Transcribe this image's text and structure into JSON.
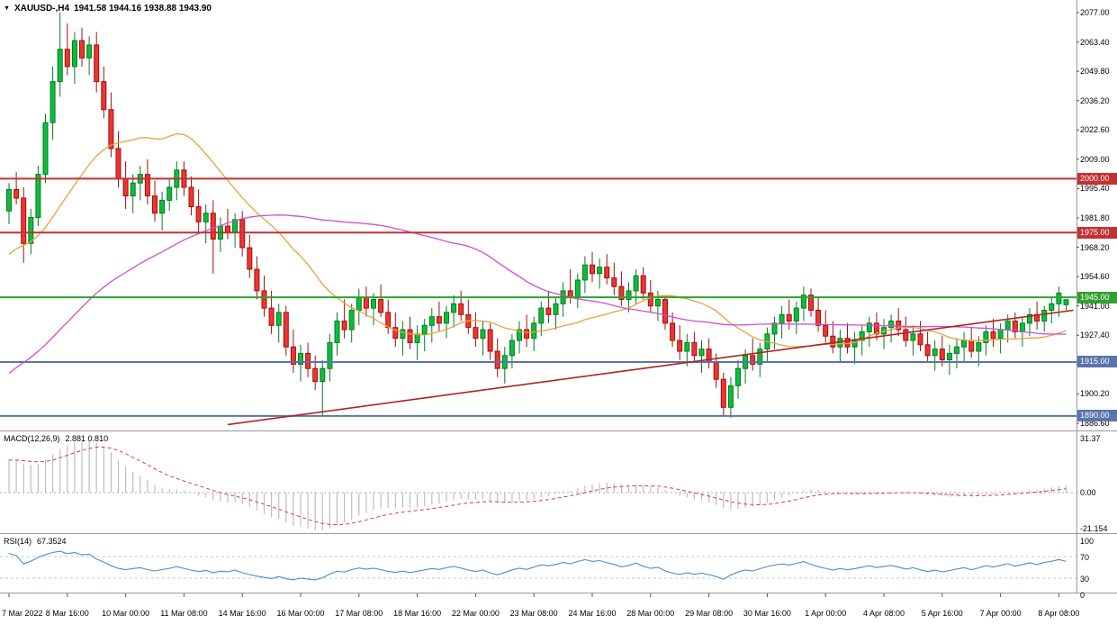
{
  "title_bar": {
    "dropdown_glyph": "▼",
    "symbol_period": "XAUUSD-,H4",
    "ohlc": "1941.58 1944.16 1938.88 1943.90"
  },
  "colors": {
    "up": "#0bbf3a",
    "up_border": "#067a22",
    "down": "#ee3532",
    "down_border": "#9d100e",
    "trendline": "#b22222",
    "macd_hist": "#bdbdbd",
    "macd_signal": "#cc4444",
    "rsi_line": "#4a8fc7",
    "rsi_level": "#b9c8dc",
    "panel_border": "#999999",
    "axis_tick": "#555555",
    "zero_line": "#aaaaaa"
  },
  "chart_data": {
    "type": "candlestick",
    "symbol": "XAUUSD-",
    "timeframe": "H4",
    "current_bar": {
      "open": 1941.58,
      "high": 1944.16,
      "low": 1938.88,
      "close": 1943.9
    },
    "y_ticks_main": [
      "2077.00",
      "2063.40",
      "2049.80",
      "2036.20",
      "2022.60",
      "2009.00",
      "1995.40",
      "1981.80",
      "1968.20",
      "1954.60",
      "1941.00",
      "1927.40",
      "1913.80",
      "1900.20",
      "1886.60"
    ],
    "price_range": {
      "top": 2077.0,
      "bottom": 1886.6
    },
    "x_labels": [
      "7 Mar 2022",
      "8 Mar 16:00",
      "10 Mar 00:00",
      "11 Mar 08:00",
      "14 Mar 16:00",
      "16 Mar 00:00",
      "17 Mar 08:00",
      "18 Mar 16:00",
      "22 Mar 00:00",
      "23 Mar 08:00",
      "24 Mar 16:00",
      "28 Mar 00:00",
      "29 Mar 08:00",
      "30 Mar 16:00",
      "1 Apr 00:00",
      "4 Apr 08:00",
      "5 Apr 16:00",
      "7 Apr 00:00",
      "8 Apr 08:00"
    ],
    "bars_per_label": 8,
    "horizontal_lines": [
      {
        "price": 2000.0,
        "label": "2000.00",
        "color": "#c53030",
        "badge": "#c53030"
      },
      {
        "price": 1975.0,
        "label": "1975.00",
        "color": "#c53030",
        "badge": "#c53030"
      },
      {
        "price": 1945.0,
        "label": "1945.00",
        "color": "#2fa12f",
        "badge": "#2fa12f"
      },
      {
        "price": 1915.0,
        "label": "1915.00",
        "color": "#5a74ac",
        "badge": "#5a74ac"
      },
      {
        "price": 1890.0,
        "label": "1890.00",
        "color": "#5a74ac",
        "badge": "#5a74ac"
      }
    ],
    "trendline": {
      "from_bar": 30,
      "from_price": 1886,
      "to_bar": 146,
      "to_price": 1939,
      "color": "#b22222"
    },
    "moving_averages": [
      {
        "name": "sma-fast",
        "period": 20,
        "color": "#e8a23c"
      },
      {
        "name": "sma-slow",
        "period": 60,
        "color": "#cf4fcf"
      }
    ],
    "candles": [
      [
        1985,
        1998,
        1979,
        1995
      ],
      [
        1995,
        2003,
        1988,
        1991
      ],
      [
        1991,
        1996,
        1961,
        1970
      ],
      [
        1970,
        1986,
        1965,
        1982
      ],
      [
        1982,
        2006,
        1978,
        2002
      ],
      [
        2002,
        2030,
        1998,
        2026
      ],
      [
        2026,
        2052,
        2018,
        2045
      ],
      [
        2045,
        2077,
        2038,
        2060
      ],
      [
        2060,
        2072,
        2048,
        2052
      ],
      [
        2052,
        2068,
        2044,
        2064
      ],
      [
        2064,
        2070,
        2052,
        2056
      ],
      [
        2056,
        2066,
        2048,
        2062
      ],
      [
        2062,
        2068,
        2040,
        2045
      ],
      [
        2045,
        2052,
        2028,
        2032
      ],
      [
        2032,
        2040,
        2010,
        2014
      ],
      [
        2014,
        2022,
        1996,
        2000
      ],
      [
        2000,
        2008,
        1986,
        1992
      ],
      [
        1992,
        2002,
        1984,
        1998
      ],
      [
        1998,
        2006,
        1990,
        2002
      ],
      [
        2002,
        2009,
        1988,
        1992
      ],
      [
        1992,
        1999,
        1980,
        1984
      ],
      [
        1984,
        1994,
        1976,
        1990
      ],
      [
        1990,
        2000,
        1985,
        1996
      ],
      [
        1996,
        2008,
        1990,
        2004
      ],
      [
        2004,
        2008,
        1992,
        1996
      ],
      [
        1996,
        2001,
        1983,
        1987
      ],
      [
        1987,
        1995,
        1975,
        1980
      ],
      [
        1980,
        1988,
        1970,
        1984
      ],
      [
        1984,
        1990,
        1956,
        1972
      ],
      [
        1972,
        1982,
        1966,
        1978
      ],
      [
        1978,
        1986,
        1972,
        1975
      ],
      [
        1975,
        1984,
        1968,
        1981
      ],
      [
        1981,
        1985,
        1964,
        1968
      ],
      [
        1968,
        1974,
        1954,
        1958
      ],
      [
        1958,
        1964,
        1944,
        1948
      ],
      [
        1948,
        1955,
        1936,
        1940
      ],
      [
        1940,
        1948,
        1928,
        1932
      ],
      [
        1932,
        1942,
        1924,
        1938
      ],
      [
        1938,
        1941,
        1918,
        1922
      ],
      [
        1922,
        1930,
        1910,
        1914
      ],
      [
        1914,
        1923,
        1906,
        1919
      ],
      [
        1919,
        1924,
        1908,
        1912
      ],
      [
        1912,
        1918,
        1902,
        1906
      ],
      [
        1906,
        1916,
        1890,
        1912
      ],
      [
        1912,
        1928,
        1906,
        1924
      ],
      [
        1924,
        1938,
        1918,
        1934
      ],
      [
        1934,
        1944,
        1926,
        1930
      ],
      [
        1930,
        1942,
        1924,
        1939
      ],
      [
        1939,
        1949,
        1932,
        1945
      ],
      [
        1945,
        1950,
        1936,
        1940
      ],
      [
        1940,
        1947,
        1932,
        1944
      ],
      [
        1944,
        1951,
        1936,
        1938
      ],
      [
        1938,
        1944,
        1928,
        1931
      ],
      [
        1931,
        1938,
        1922,
        1926
      ],
      [
        1926,
        1934,
        1918,
        1930
      ],
      [
        1930,
        1936,
        1921,
        1924
      ],
      [
        1924,
        1932,
        1916,
        1928
      ],
      [
        1928,
        1935,
        1920,
        1932
      ],
      [
        1932,
        1940,
        1924,
        1936
      ],
      [
        1936,
        1943,
        1929,
        1933
      ],
      [
        1933,
        1941,
        1926,
        1938
      ],
      [
        1938,
        1946,
        1931,
        1942
      ],
      [
        1942,
        1948,
        1934,
        1937
      ],
      [
        1937,
        1944,
        1928,
        1931
      ],
      [
        1931,
        1938,
        1922,
        1926
      ],
      [
        1926,
        1934,
        1918,
        1930
      ],
      [
        1930,
        1933,
        1916,
        1920
      ],
      [
        1920,
        1926,
        1908,
        1912
      ],
      [
        1912,
        1922,
        1905,
        1918
      ],
      [
        1918,
        1928,
        1912,
        1925
      ],
      [
        1925,
        1934,
        1919,
        1930
      ],
      [
        1930,
        1937,
        1922,
        1926
      ],
      [
        1926,
        1936,
        1920,
        1933
      ],
      [
        1933,
        1943,
        1927,
        1940
      ],
      [
        1940,
        1948,
        1933,
        1937
      ],
      [
        1937,
        1945,
        1930,
        1942
      ],
      [
        1942,
        1952,
        1936,
        1948
      ],
      [
        1948,
        1958,
        1942,
        1945
      ],
      [
        1945,
        1956,
        1940,
        1953
      ],
      [
        1953,
        1964,
        1947,
        1960
      ],
      [
        1960,
        1966,
        1952,
        1956
      ],
      [
        1956,
        1963,
        1949,
        1959
      ],
      [
        1959,
        1965,
        1951,
        1954
      ],
      [
        1954,
        1961,
        1946,
        1950
      ],
      [
        1950,
        1957,
        1941,
        1944
      ],
      [
        1944,
        1952,
        1938,
        1948
      ],
      [
        1948,
        1958,
        1942,
        1955
      ],
      [
        1955,
        1959,
        1944,
        1947
      ],
      [
        1947,
        1953,
        1938,
        1941
      ],
      [
        1941,
        1948,
        1934,
        1944
      ],
      [
        1944,
        1946,
        1930,
        1933
      ],
      [
        1933,
        1938,
        1922,
        1925
      ],
      [
        1925,
        1932,
        1916,
        1920
      ],
      [
        1920,
        1928,
        1913,
        1924
      ],
      [
        1924,
        1929,
        1915,
        1918
      ],
      [
        1918,
        1925,
        1910,
        1921
      ],
      [
        1921,
        1926,
        1912,
        1915
      ],
      [
        1915,
        1919,
        1903,
        1907
      ],
      [
        1907,
        1910,
        1890,
        1894
      ],
      [
        1894,
        1908,
        1889,
        1904
      ],
      [
        1904,
        1916,
        1898,
        1912
      ],
      [
        1912,
        1921,
        1905,
        1918
      ],
      [
        1918,
        1926,
        1911,
        1914
      ],
      [
        1914,
        1924,
        1908,
        1921
      ],
      [
        1921,
        1931,
        1915,
        1928
      ],
      [
        1928,
        1936,
        1921,
        1933
      ],
      [
        1933,
        1941,
        1926,
        1937
      ],
      [
        1937,
        1944,
        1930,
        1934
      ],
      [
        1934,
        1943,
        1928,
        1940
      ],
      [
        1940,
        1950,
        1934,
        1946
      ],
      [
        1946,
        1949,
        1936,
        1939
      ],
      [
        1939,
        1945,
        1929,
        1932
      ],
      [
        1932,
        1939,
        1924,
        1927
      ],
      [
        1927,
        1934,
        1919,
        1922
      ],
      [
        1922,
        1930,
        1915,
        1926
      ],
      [
        1926,
        1933,
        1919,
        1922
      ],
      [
        1922,
        1929,
        1914,
        1925
      ],
      [
        1925,
        1932,
        1918,
        1929
      ],
      [
        1929,
        1936,
        1922,
        1933
      ],
      [
        1933,
        1938,
        1925,
        1928
      ],
      [
        1928,
        1935,
        1921,
        1931
      ],
      [
        1931,
        1937,
        1924,
        1934
      ],
      [
        1934,
        1940,
        1927,
        1930
      ],
      [
        1930,
        1936,
        1922,
        1925
      ],
      [
        1925,
        1932,
        1918,
        1928
      ],
      [
        1928,
        1934,
        1920,
        1923
      ],
      [
        1923,
        1929,
        1915,
        1918
      ],
      [
        1918,
        1925,
        1911,
        1921
      ],
      [
        1921,
        1927,
        1913,
        1916
      ],
      [
        1916,
        1923,
        1909,
        1919
      ],
      [
        1919,
        1926,
        1912,
        1922
      ],
      [
        1922,
        1929,
        1915,
        1925
      ],
      [
        1925,
        1931,
        1917,
        1920
      ],
      [
        1920,
        1927,
        1913,
        1924
      ],
      [
        1924,
        1932,
        1918,
        1929
      ],
      [
        1929,
        1935,
        1922,
        1926
      ],
      [
        1926,
        1933,
        1919,
        1930
      ],
      [
        1930,
        1937,
        1924,
        1934
      ],
      [
        1934,
        1938,
        1926,
        1929
      ],
      [
        1929,
        1936,
        1922,
        1933
      ],
      [
        1933,
        1940,
        1927,
        1937
      ],
      [
        1937,
        1943,
        1930,
        1934
      ],
      [
        1934,
        1941,
        1929,
        1939
      ],
      [
        1939,
        1945,
        1933,
        1942
      ],
      [
        1942,
        1950,
        1936,
        1947
      ],
      [
        1941.58,
        1944.16,
        1938.88,
        1943.9
      ]
    ],
    "indicators": {
      "macd": {
        "label": "MACD(12,26,9)",
        "values": "2.881 0.810",
        "fast": 12,
        "slow": 26,
        "signal": 9,
        "y_ticks": [
          "31.37",
          "0.00",
          "-21.154"
        ]
      },
      "rsi": {
        "label": "RSI(14)",
        "value": "67.3524",
        "period": 14,
        "levels": [
          70,
          30
        ],
        "y_ticks": [
          "100",
          "70",
          "30",
          "0"
        ]
      }
    }
  }
}
